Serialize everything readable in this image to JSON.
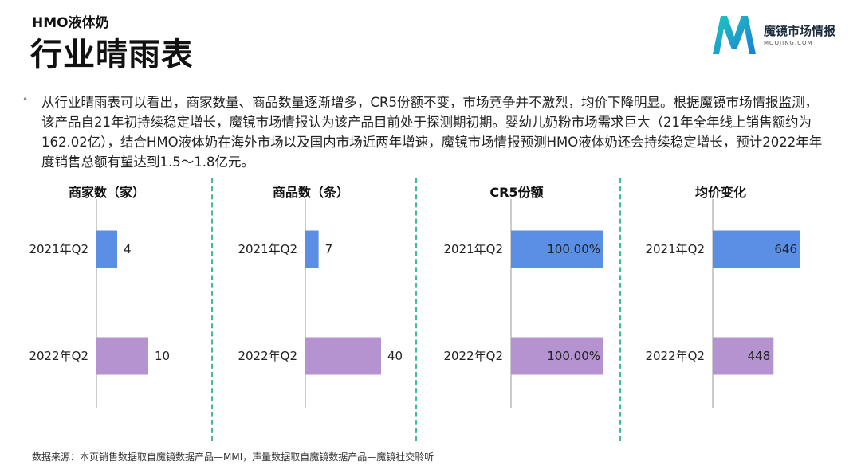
{
  "header": {
    "subtitle": "HMO液体奶",
    "title": "行业晴雨表"
  },
  "logo": {
    "name": "魔镜市场情报",
    "url": "MOOJING.COM"
  },
  "summary": "从行业晴雨表可以看出，商家数量、商品数量逐渐增多，CR5份额不变，市场竞争并不激烈，均价下降明显。根据魔镜市场情报监测，该产品自21年初持续稳定增长，魔镜市场情报认为该产品目前处于探测期初期。婴幼儿奶粉市场需求巨大（21年全年线上销售额约为162.02亿），结合HMO液体奶在海外市场以及国内市场近两年增速，魔镜市场情报预测HMO液体奶还会持续稳定增长，预计2022年年度销售总额有望达到1.5～1.8亿元。",
  "footer": "数据来源：本页销售数据取自魔镜数据产品—MMI，声量数据取自魔镜数据产品—魔镜社交聆听",
  "colors": {
    "series_2021": "#5b8fe5",
    "series_2022": "#b593d1",
    "divider": "#3cc08d",
    "axis": "#bbbbbb"
  },
  "chart_data": [
    {
      "type": "bar",
      "orientation": "horizontal",
      "title": "商家数（家）",
      "categories": [
        "2021年Q2",
        "2022年Q2"
      ],
      "values": [
        4,
        10
      ],
      "labels": [
        "4",
        "10"
      ],
      "label_position": "outside"
    },
    {
      "type": "bar",
      "orientation": "horizontal",
      "title": "商品数（条）",
      "categories": [
        "2021年Q2",
        "2022年Q2"
      ],
      "values": [
        7,
        40
      ],
      "labels": [
        "7",
        "40"
      ],
      "label_position": "outside"
    },
    {
      "type": "bar",
      "orientation": "horizontal",
      "title": "CR5份额",
      "categories": [
        "2021年Q2",
        "2022年Q2"
      ],
      "values": [
        100,
        100
      ],
      "labels": [
        "100.00%",
        "100.00%"
      ],
      "label_position": "inside"
    },
    {
      "type": "bar",
      "orientation": "horizontal",
      "title": "均价变化",
      "categories": [
        "2021年Q2",
        "2022年Q2"
      ],
      "values": [
        646,
        448
      ],
      "labels": [
        "646",
        "448"
      ],
      "label_position": "inside"
    }
  ]
}
